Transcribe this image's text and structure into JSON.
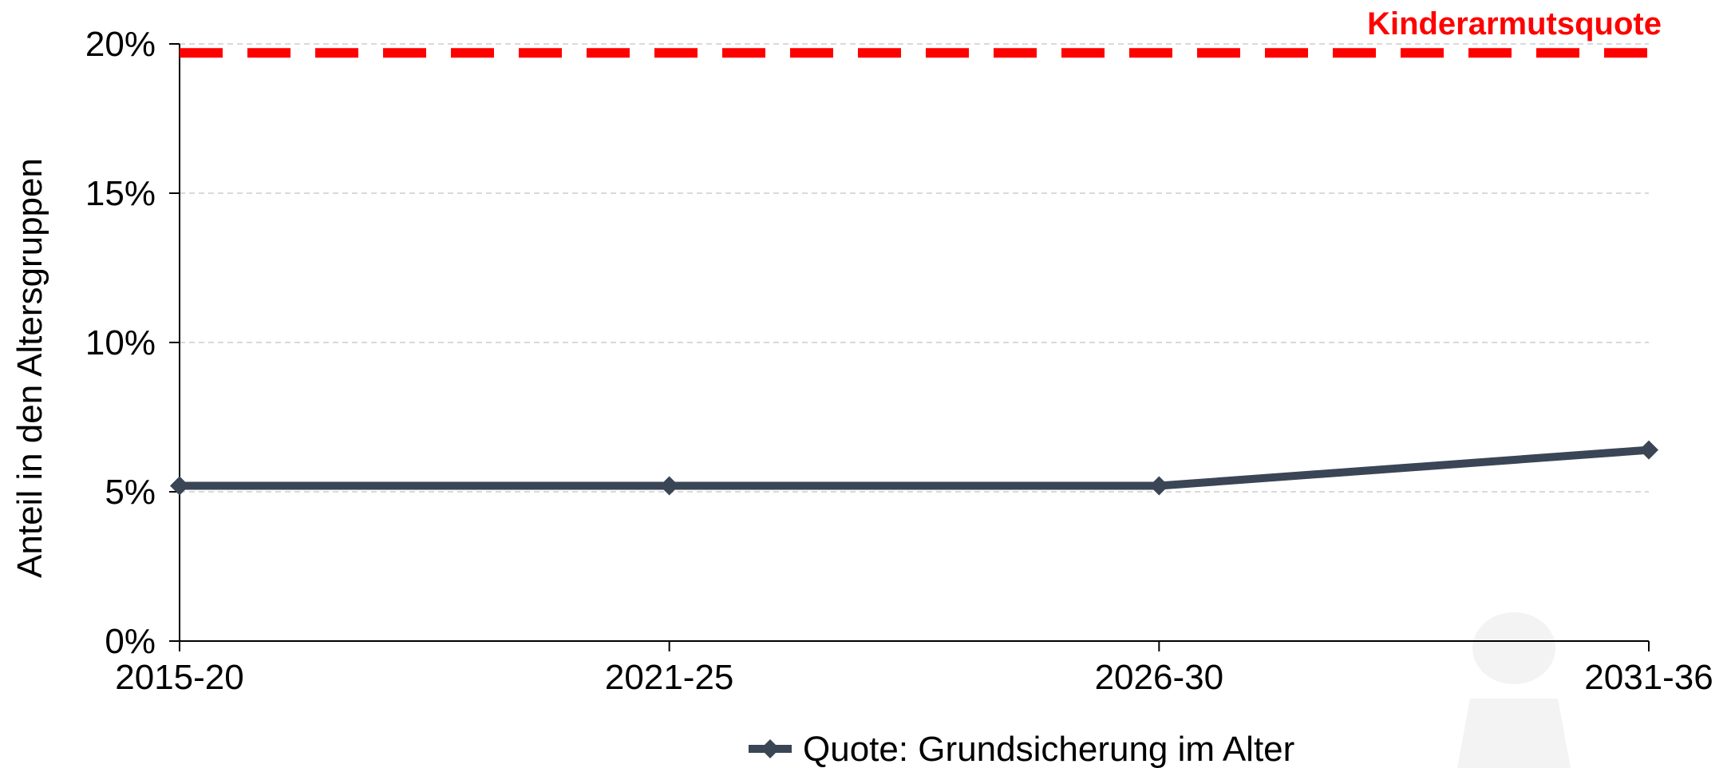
{
  "chart_data": {
    "type": "line",
    "categories": [
      "2015-20",
      "2021-25",
      "2026-30",
      "2031-36"
    ],
    "series": [
      {
        "name": "Quote: Grundsicherung im Alter",
        "values": [
          5.2,
          5.2,
          5.2,
          6.4
        ],
        "color": "#3a4556",
        "marker": "diamond"
      }
    ],
    "reference_line": {
      "label": "Kinderarmutsquote",
      "value": 19.7,
      "color": "#ff0000",
      "style": "dashed"
    },
    "ylabel": "Anteil in den Altersgruppen",
    "xlabel": "",
    "ylim": [
      0,
      20
    ],
    "yticks": [
      0,
      5,
      10,
      15,
      20
    ],
    "ytick_labels": [
      "0%",
      "5%",
      "10%",
      "15%",
      "20%"
    ],
    "grid": "horizontal dashed",
    "legend_position": "bottom-center"
  },
  "watermark": {
    "icon": "person-silhouette-icon",
    "color": "#f2f2f2"
  }
}
